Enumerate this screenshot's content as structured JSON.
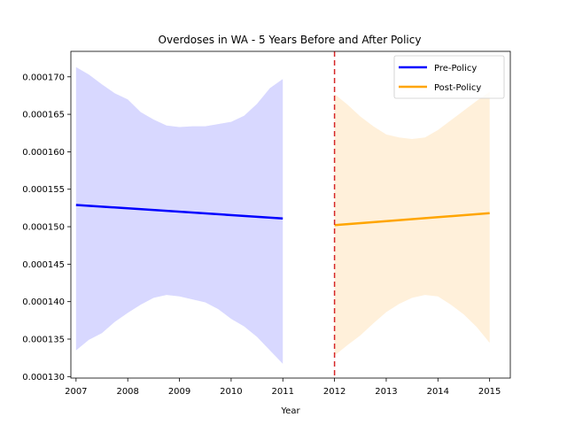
{
  "chart_data": {
    "type": "line",
    "title": "Overdoses in WA - 5 Years Before and After Policy",
    "xlabel": "Year",
    "ylabel": "",
    "xlim": [
      2006.9,
      2015.4
    ],
    "ylim": [
      0.0001298,
      0.0001734
    ],
    "x_ticks": [
      "2007",
      "2008",
      "2009",
      "2010",
      "2011",
      "2012",
      "2013",
      "2014",
      "2015"
    ],
    "y_ticks": [
      "0.000130",
      "0.000135",
      "0.000140",
      "0.000145",
      "0.000150",
      "0.000155",
      "0.000160",
      "0.000165",
      "0.000170"
    ],
    "y_tick_values": [
      0.00013,
      0.000135,
      0.00014,
      0.000145,
      0.00015,
      0.000155,
      0.00016,
      0.000165,
      0.00017
    ],
    "policy_line": {
      "x": 2012,
      "color": "#d62728",
      "style": "dashed"
    },
    "legend": {
      "placement": "top-right"
    },
    "series": [
      {
        "name": "Pre-Policy",
        "color": "#0000ff",
        "band_color": "#d8d8ff",
        "x": [
          2007,
          2011
        ],
        "y": [
          0.0001529,
          0.0001511
        ],
        "band_x": [
          2007,
          2007.25,
          2007.5,
          2007.75,
          2008,
          2008.25,
          2008.5,
          2008.75,
          2009,
          2009.25,
          2009.5,
          2009.75,
          2010,
          2010.25,
          2010.5,
          2010.75,
          2011
        ],
        "band_upper": [
          0.0001713,
          0.0001703,
          0.000169,
          0.0001678,
          0.000167,
          0.0001653,
          0.0001643,
          0.0001635,
          0.0001633,
          0.0001634,
          0.0001634,
          0.0001637,
          0.000164,
          0.0001648,
          0.0001664,
          0.0001685,
          0.0001697
        ],
        "band_lower": [
          0.0001335,
          0.0001349,
          0.0001358,
          0.0001373,
          0.0001385,
          0.0001396,
          0.0001405,
          0.0001409,
          0.0001407,
          0.0001403,
          0.0001399,
          0.000139,
          0.0001377,
          0.0001367,
          0.0001353,
          0.0001335,
          0.0001317
        ]
      },
      {
        "name": "Post-Policy",
        "color": "#ffa500",
        "band_color": "#fff0da",
        "x": [
          2012,
          2015
        ],
        "y": [
          0.0001502,
          0.0001518
        ],
        "band_x": [
          2012,
          2012.25,
          2012.5,
          2012.75,
          2013,
          2013.25,
          2013.5,
          2013.75,
          2014,
          2014.25,
          2014.5,
          2014.75,
          2015
        ],
        "band_upper": [
          0.0001677,
          0.0001663,
          0.0001647,
          0.0001634,
          0.0001623,
          0.0001619,
          0.0001617,
          0.0001619,
          0.0001629,
          0.0001642,
          0.0001655,
          0.0001668,
          0.000168
        ],
        "band_lower": [
          0.0001328,
          0.0001342,
          0.0001355,
          0.0001371,
          0.0001386,
          0.0001397,
          0.0001405,
          0.0001409,
          0.0001407,
          0.0001396,
          0.0001383,
          0.0001366,
          0.0001345
        ]
      }
    ]
  }
}
